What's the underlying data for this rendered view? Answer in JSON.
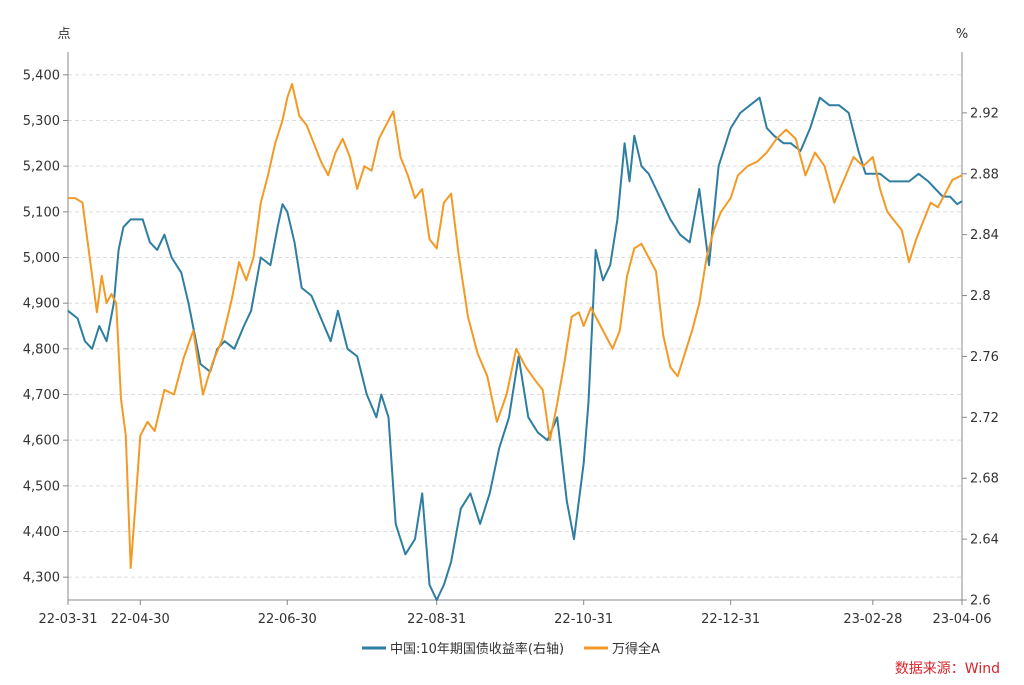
{
  "chart_data": {
    "type": "line",
    "left_unit": "点",
    "right_unit": "%",
    "source": "数据来源：Wind",
    "x_ticks": [
      "22-03-31",
      "22-04-30",
      "22-06-30",
      "22-08-31",
      "22-10-31",
      "22-12-31",
      "23-02-28",
      "23-04-06"
    ],
    "left_axis": {
      "ylim": [
        4250,
        5450
      ],
      "ticks": [
        "4,300",
        "4,400",
        "4,500",
        "4,600",
        "4,700",
        "4,800",
        "4,900",
        "5,000",
        "5,100",
        "5,200",
        "5,300",
        "5,400"
      ]
    },
    "right_axis": {
      "ylim": [
        2.6,
        2.96
      ],
      "ticks": [
        "2.6",
        "2.64",
        "2.68",
        "2.72",
        "2.76",
        "2.8",
        "2.84",
        "2.88",
        "2.92"
      ]
    },
    "grid": true,
    "legend_position": "bottom",
    "series": [
      {
        "name": "中国:10年期国债收益率(右轴)",
        "axis": "right",
        "color": "#2e7ea1",
        "x": [
          "2022-03-31",
          "2022-04-04",
          "2022-04-07",
          "2022-04-10",
          "2022-04-13",
          "2022-04-16",
          "2022-04-19",
          "2022-04-21",
          "2022-04-23",
          "2022-04-26",
          "2022-04-28",
          "2022-05-01",
          "2022-05-04",
          "2022-05-07",
          "2022-05-10",
          "2022-05-13",
          "2022-05-17",
          "2022-05-20",
          "2022-05-25",
          "2022-05-29",
          "2022-06-01",
          "2022-06-04",
          "2022-06-08",
          "2022-06-12",
          "2022-06-15",
          "2022-06-19",
          "2022-06-23",
          "2022-06-26",
          "2022-06-28",
          "2022-06-30",
          "2022-07-03",
          "2022-07-06",
          "2022-07-10",
          "2022-07-14",
          "2022-07-18",
          "2022-07-21",
          "2022-07-25",
          "2022-07-29",
          "2022-08-02",
          "2022-08-06",
          "2022-08-08",
          "2022-08-11",
          "2022-08-14",
          "2022-08-18",
          "2022-08-22",
          "2022-08-25",
          "2022-08-28",
          "2022-08-31",
          "2022-09-03",
          "2022-09-06",
          "2022-09-10",
          "2022-09-14",
          "2022-09-18",
          "2022-09-22",
          "2022-09-26",
          "2022-09-30",
          "2022-10-04",
          "2022-10-08",
          "2022-10-12",
          "2022-10-16",
          "2022-10-20",
          "2022-10-24",
          "2022-10-27",
          "2022-10-31",
          "2022-11-02",
          "2022-11-05",
          "2022-11-08",
          "2022-11-11",
          "2022-11-14",
          "2022-11-17",
          "2022-11-19",
          "2022-11-21",
          "2022-11-24",
          "2022-11-27",
          "2022-11-30",
          "2022-12-03",
          "2022-12-06",
          "2022-12-10",
          "2022-12-14",
          "2022-12-18",
          "2022-12-22",
          "2022-12-26",
          "2022-12-31",
          "2023-01-04",
          "2023-01-08",
          "2023-01-12",
          "2023-01-15",
          "2023-01-18",
          "2023-01-22",
          "2023-01-25",
          "2023-01-29",
          "2023-02-02",
          "2023-02-06",
          "2023-02-10",
          "2023-02-14",
          "2023-02-18",
          "2023-02-22",
          "2023-02-25",
          "2023-02-28",
          "2023-03-03",
          "2023-03-07",
          "2023-03-11",
          "2023-03-15",
          "2023-03-19",
          "2023-03-23",
          "2023-03-26",
          "2023-03-29",
          "2023-04-01",
          "2023-04-04",
          "2023-04-06"
        ],
        "values": [
          2.79,
          2.785,
          2.77,
          2.765,
          2.78,
          2.77,
          2.795,
          2.83,
          2.845,
          2.85,
          2.85,
          2.85,
          2.835,
          2.83,
          2.84,
          2.825,
          2.815,
          2.795,
          2.755,
          2.75,
          2.765,
          2.77,
          2.765,
          2.78,
          2.79,
          2.825,
          2.82,
          2.845,
          2.86,
          2.855,
          2.835,
          2.805,
          2.8,
          2.785,
          2.77,
          2.79,
          2.765,
          2.76,
          2.735,
          2.72,
          2.735,
          2.72,
          2.65,
          2.63,
          2.64,
          2.67,
          2.61,
          2.6,
          2.61,
          2.625,
          2.66,
          2.67,
          2.65,
          2.67,
          2.7,
          2.72,
          2.76,
          2.72,
          2.71,
          2.705,
          2.72,
          2.665,
          2.64,
          2.69,
          2.73,
          2.83,
          2.81,
          2.82,
          2.85,
          2.9,
          2.875,
          2.905,
          2.885,
          2.88,
          2.87,
          2.86,
          2.85,
          2.84,
          2.835,
          2.87,
          2.82,
          2.885,
          2.91,
          2.92,
          2.925,
          2.93,
          2.91,
          2.905,
          2.9,
          2.9,
          2.895,
          2.91,
          2.93,
          2.925,
          2.925,
          2.92,
          2.895,
          2.88,
          2.88,
          2.88,
          2.875,
          2.875,
          2.875,
          2.88,
          2.875,
          2.87,
          2.865,
          2.865,
          2.86,
          2.862
        ]
      },
      {
        "name": "万得全A",
        "axis": "left",
        "color": "#f39a26",
        "x": [
          "2022-03-31",
          "2022-04-03",
          "2022-04-06",
          "2022-04-08",
          "2022-04-10",
          "2022-04-12",
          "2022-04-14",
          "2022-04-16",
          "2022-04-18",
          "2022-04-20",
          "2022-04-22",
          "2022-04-24",
          "2022-04-26",
          "2022-04-28",
          "2022-04-30",
          "2022-05-03",
          "2022-05-06",
          "2022-05-10",
          "2022-05-14",
          "2022-05-18",
          "2022-05-22",
          "2022-05-26",
          "2022-05-30",
          "2022-06-03",
          "2022-06-07",
          "2022-06-10",
          "2022-06-13",
          "2022-06-16",
          "2022-06-19",
          "2022-06-22",
          "2022-06-25",
          "2022-06-28",
          "2022-06-30",
          "2022-07-02",
          "2022-07-05",
          "2022-07-08",
          "2022-07-11",
          "2022-07-14",
          "2022-07-17",
          "2022-07-20",
          "2022-07-23",
          "2022-07-26",
          "2022-07-29",
          "2022-08-01",
          "2022-08-04",
          "2022-08-07",
          "2022-08-10",
          "2022-08-13",
          "2022-08-16",
          "2022-08-19",
          "2022-08-22",
          "2022-08-25",
          "2022-08-28",
          "2022-08-31",
          "2022-09-03",
          "2022-09-06",
          "2022-09-09",
          "2022-09-13",
          "2022-09-17",
          "2022-09-21",
          "2022-09-25",
          "2022-09-29",
          "2022-10-03",
          "2022-10-07",
          "2022-10-11",
          "2022-10-14",
          "2022-10-17",
          "2022-10-20",
          "2022-10-23",
          "2022-10-26",
          "2022-10-29",
          "2022-10-31",
          "2022-11-03",
          "2022-11-06",
          "2022-11-09",
          "2022-11-12",
          "2022-11-15",
          "2022-11-18",
          "2022-11-21",
          "2022-11-24",
          "2022-11-27",
          "2022-11-30",
          "2022-12-03",
          "2022-12-06",
          "2022-12-09",
          "2022-12-12",
          "2022-12-15",
          "2022-12-18",
          "2022-12-21",
          "2022-12-24",
          "2022-12-27",
          "2022-12-31",
          "2023-01-03",
          "2023-01-07",
          "2023-01-11",
          "2023-01-15",
          "2023-01-19",
          "2023-01-23",
          "2023-01-27",
          "2023-01-31",
          "2023-02-04",
          "2023-02-08",
          "2023-02-12",
          "2023-02-16",
          "2023-02-20",
          "2023-02-24",
          "2023-02-28",
          "2023-03-03",
          "2023-03-06",
          "2023-03-09",
          "2023-03-12",
          "2023-03-15",
          "2023-03-18",
          "2023-03-21",
          "2023-03-24",
          "2023-03-27",
          "2023-03-30",
          "2023-04-02",
          "2023-04-06"
        ],
        "values": [
          5130,
          5130,
          5120,
          5040,
          4960,
          4880,
          4960,
          4900,
          4920,
          4900,
          4690,
          4610,
          4320,
          4460,
          4610,
          4640,
          4620,
          4710,
          4700,
          4780,
          4840,
          4700,
          4770,
          4820,
          4910,
          4990,
          4950,
          5000,
          5120,
          5180,
          5250,
          5300,
          5350,
          5380,
          5310,
          5290,
          5250,
          5210,
          5180,
          5230,
          5260,
          5220,
          5150,
          5200,
          5190,
          5260,
          5290,
          5320,
          5220,
          5180,
          5130,
          5150,
          5040,
          5020,
          5120,
          5140,
          5010,
          4870,
          4790,
          4740,
          4640,
          4700,
          4800,
          4760,
          4730,
          4710,
          4600,
          4680,
          4770,
          4870,
          4880,
          4850,
          4890,
          4860,
          4830,
          4800,
          4840,
          4960,
          5020,
          5030,
          5000,
          4970,
          4830,
          4760,
          4740,
          4790,
          4840,
          4900,
          5000,
          5060,
          5100,
          5130,
          5180,
          5200,
          5210,
          5230,
          5260,
          5280,
          5260,
          5180,
          5230,
          5200,
          5120,
          5170,
          5220,
          5200,
          5220,
          5150,
          5100,
          5080,
          5060,
          4990,
          5040,
          5080,
          5120,
          5110,
          5140,
          5170,
          5180
        ]
      }
    ]
  }
}
